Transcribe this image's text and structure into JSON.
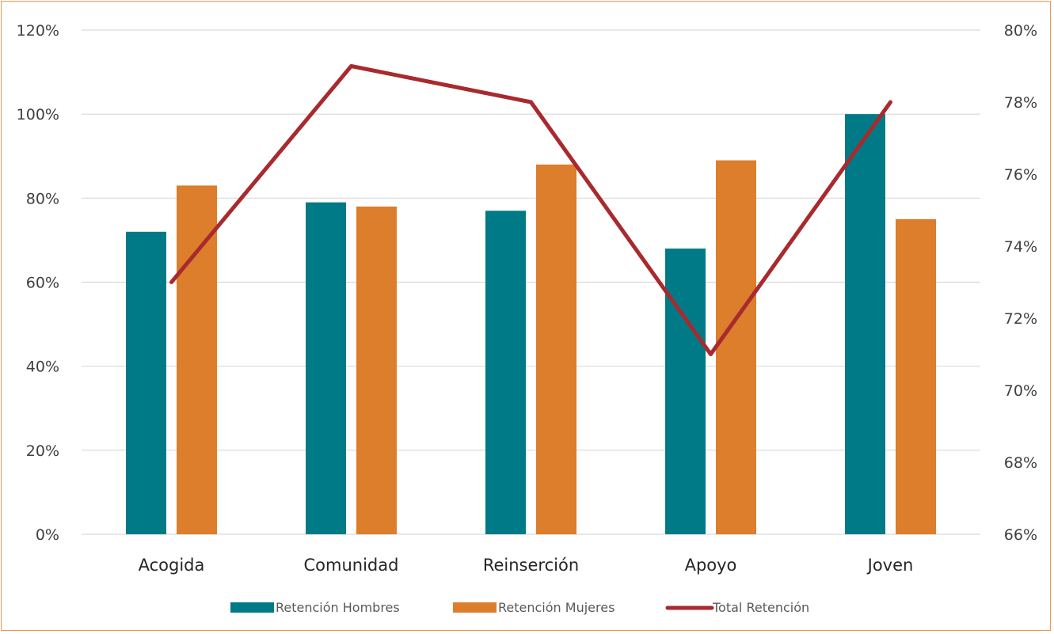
{
  "chart_data": {
    "type": "bar",
    "categories": [
      "Acogida",
      "Comunidad",
      "Reinserción",
      "Apoyo",
      "Joven"
    ],
    "series": [
      {
        "name": "Retención Hombres",
        "type": "bar",
        "axis": "left",
        "color": "#007A87",
        "values": [
          0.72,
          0.79,
          0.77,
          0.68,
          1.0
        ]
      },
      {
        "name": "Retención  Mujeres",
        "type": "bar",
        "axis": "left",
        "color": "#DC7E2B",
        "values": [
          0.83,
          0.78,
          0.88,
          0.89,
          0.75
        ]
      },
      {
        "name": "Total  Retención",
        "type": "line",
        "axis": "right",
        "color": "#A82A2E",
        "values": [
          0.73,
          0.79,
          0.78,
          0.71,
          0.78
        ]
      }
    ],
    "y_left": {
      "min": 0,
      "max": 1.2,
      "step": 0.2,
      "tick_labels": [
        "0%",
        "20%",
        "40%",
        "60%",
        "80%",
        "100%",
        "120%"
      ]
    },
    "y_right": {
      "min": 0.66,
      "max": 0.8,
      "step": 0.02,
      "tick_labels": [
        "66%",
        "68%",
        "70%",
        "72%",
        "74%",
        "76%",
        "78%",
        "80%"
      ]
    },
    "grid": true,
    "legend_position": "bottom",
    "border_color": "#E59A4F"
  }
}
